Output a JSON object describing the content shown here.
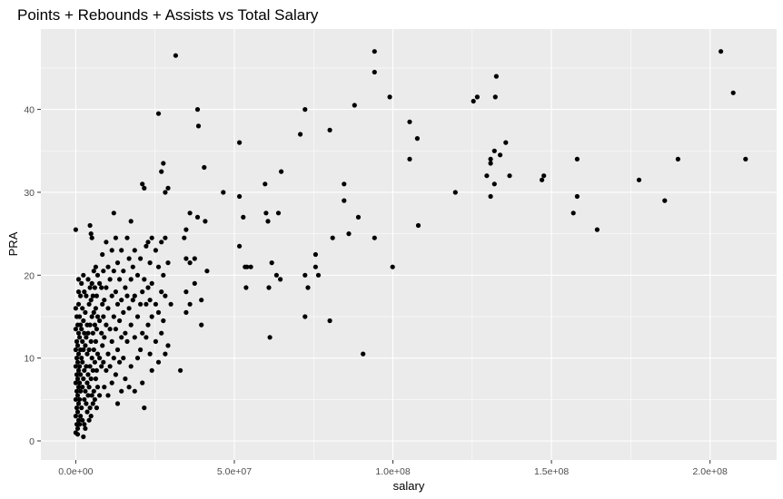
{
  "chart_data": {
    "type": "scatter",
    "title": "Points + Rebounds + Assists vs Total Salary",
    "xlabel": "salary",
    "ylabel": "PRA",
    "xlim": [
      -11000000,
      221000000
    ],
    "ylim": [
      -2.3,
      49.7
    ],
    "x_ticks": [
      0,
      50000000,
      100000000,
      150000000,
      200000000
    ],
    "x_tick_labels": [
      "0.0e+00",
      "5.0e+07",
      "1.0e+08",
      "1.5e+08",
      "2.0e+08"
    ],
    "y_ticks": [
      0,
      10,
      20,
      30,
      40
    ],
    "y_tick_labels": [
      "0",
      "10",
      "20",
      "30",
      "40"
    ],
    "grid": true,
    "colors": {
      "panel": "#ebebeb",
      "grid": "#ffffff",
      "point": "#000000"
    },
    "points": [
      [
        0,
        25.5
      ],
      [
        0,
        16
      ],
      [
        300000,
        15
      ],
      [
        0,
        13.5
      ],
      [
        300000,
        12
      ],
      [
        0,
        11
      ],
      [
        300000,
        10
      ],
      [
        0,
        9
      ],
      [
        300000,
        8
      ],
      [
        0,
        7
      ],
      [
        300000,
        6
      ],
      [
        0,
        5
      ],
      [
        300000,
        4
      ],
      [
        0,
        3
      ],
      [
        300000,
        2
      ],
      [
        0,
        1
      ],
      [
        600000,
        14
      ],
      [
        600000,
        11.5
      ],
      [
        600000,
        9.5
      ],
      [
        600000,
        7.5
      ],
      [
        600000,
        5.5
      ],
      [
        600000,
        3.5
      ],
      [
        600000,
        1.5
      ],
      [
        600000,
        0.8
      ],
      [
        900000,
        19.5
      ],
      [
        900000,
        18
      ],
      [
        900000,
        16.5
      ],
      [
        900000,
        13
      ],
      [
        900000,
        10.5
      ],
      [
        900000,
        8.5
      ],
      [
        900000,
        6.5
      ],
      [
        900000,
        4.5
      ],
      [
        900000,
        2.5
      ],
      [
        1200000,
        15
      ],
      [
        1200000,
        12.5
      ],
      [
        1200000,
        9
      ],
      [
        1200000,
        7
      ],
      [
        1200000,
        5
      ],
      [
        1200000,
        2
      ],
      [
        1500000,
        17.5
      ],
      [
        1500000,
        14
      ],
      [
        1500000,
        11
      ],
      [
        1500000,
        8
      ],
      [
        1500000,
        6
      ],
      [
        1500000,
        3
      ],
      [
        1800000,
        19
      ],
      [
        1800000,
        13.5
      ],
      [
        1800000,
        10
      ],
      [
        1800000,
        4
      ],
      [
        2100000,
        16
      ],
      [
        2100000,
        12
      ],
      [
        2100000,
        9.5
      ],
      [
        2100000,
        6.5
      ],
      [
        2100000,
        2.5
      ],
      [
        2400000,
        20
      ],
      [
        2400000,
        14.5
      ],
      [
        2400000,
        11
      ],
      [
        2400000,
        7.5
      ],
      [
        2400000,
        0.5
      ],
      [
        2700000,
        18
      ],
      [
        2700000,
        13
      ],
      [
        2700000,
        8.5
      ],
      [
        2700000,
        5
      ],
      [
        2700000,
        2
      ],
      [
        3000000,
        15.5
      ],
      [
        3000000,
        11.5
      ],
      [
        3000000,
        6
      ],
      [
        3000000,
        1.5
      ],
      [
        3300000,
        17.5
      ],
      [
        3300000,
        12.5
      ],
      [
        3300000,
        9
      ],
      [
        3300000,
        4.5
      ],
      [
        3600000,
        14
      ],
      [
        3600000,
        10.5
      ],
      [
        3600000,
        7
      ],
      [
        3600000,
        3.5
      ],
      [
        3900000,
        19.5
      ],
      [
        3900000,
        13
      ],
      [
        3900000,
        8
      ],
      [
        3900000,
        5.5
      ],
      [
        4200000,
        16.5
      ],
      [
        4200000,
        11
      ],
      [
        4200000,
        6.5
      ],
      [
        4200000,
        2.5
      ],
      [
        4500000,
        26
      ],
      [
        4500000,
        18.5
      ],
      [
        4500000,
        14
      ],
      [
        4500000,
        9
      ],
      [
        4500000,
        4
      ],
      [
        4800000,
        25
      ],
      [
        4800000,
        17
      ],
      [
        4800000,
        12
      ],
      [
        4800000,
        7.5
      ],
      [
        4800000,
        3
      ],
      [
        5100000,
        24.5
      ],
      [
        5100000,
        19
      ],
      [
        5100000,
        15
      ],
      [
        5100000,
        10
      ],
      [
        5100000,
        5.5
      ],
      [
        5400000,
        17.5
      ],
      [
        5400000,
        13
      ],
      [
        5400000,
        8.5
      ],
      [
        5400000,
        4.5
      ],
      [
        5700000,
        20.5
      ],
      [
        5700000,
        15.5
      ],
      [
        5700000,
        11
      ],
      [
        5700000,
        6
      ],
      [
        6000000,
        18.5
      ],
      [
        6000000,
        14
      ],
      [
        6000000,
        9.5
      ],
      [
        6000000,
        5
      ],
      [
        6300000,
        21
      ],
      [
        6300000,
        16
      ],
      [
        6300000,
        12
      ],
      [
        6300000,
        7.5
      ],
      [
        6600000,
        17.5
      ],
      [
        6600000,
        13.5
      ],
      [
        6600000,
        8.5
      ],
      [
        6600000,
        4
      ],
      [
        6900000,
        20
      ],
      [
        6900000,
        15
      ],
      [
        6900000,
        10.5
      ],
      [
        6900000,
        6.5
      ],
      [
        7500000,
        19
      ],
      [
        7500000,
        14.5
      ],
      [
        7500000,
        10
      ],
      [
        7500000,
        5.5
      ],
      [
        8100000,
        18.5
      ],
      [
        8100000,
        13
      ],
      [
        8100000,
        9
      ],
      [
        8400000,
        22.5
      ],
      [
        8400000,
        16.5
      ],
      [
        8400000,
        11.5
      ],
      [
        8700000,
        20.5
      ],
      [
        8700000,
        15
      ],
      [
        8700000,
        9.5
      ],
      [
        9000000,
        17
      ],
      [
        9000000,
        12.5
      ],
      [
        9000000,
        6.5
      ],
      [
        9600000,
        24
      ],
      [
        9600000,
        18.5
      ],
      [
        9600000,
        14
      ],
      [
        9600000,
        8.5
      ],
      [
        10200000,
        21
      ],
      [
        10200000,
        16
      ],
      [
        10200000,
        10.5
      ],
      [
        10200000,
        5.5
      ],
      [
        10800000,
        19.5
      ],
      [
        10800000,
        13.5
      ],
      [
        10800000,
        9
      ],
      [
        11400000,
        23
      ],
      [
        11400000,
        17.5
      ],
      [
        11400000,
        12
      ],
      [
        11400000,
        7
      ],
      [
        12000000,
        27.5
      ],
      [
        12000000,
        20.5
      ],
      [
        12000000,
        15
      ],
      [
        12000000,
        10
      ],
      [
        12600000,
        24.5
      ],
      [
        12600000,
        18
      ],
      [
        12600000,
        13.5
      ],
      [
        12600000,
        8
      ],
      [
        13200000,
        21.5
      ],
      [
        13200000,
        16.5
      ],
      [
        13200000,
        11
      ],
      [
        13200000,
        4.5
      ],
      [
        13800000,
        19.5
      ],
      [
        13800000,
        14.5
      ],
      [
        13800000,
        9.5
      ],
      [
        14400000,
        23
      ],
      [
        14400000,
        17
      ],
      [
        14400000,
        12.5
      ],
      [
        14400000,
        6
      ],
      [
        15000000,
        20.5
      ],
      [
        15000000,
        15.5
      ],
      [
        15000000,
        10
      ],
      [
        15600000,
        18.5
      ],
      [
        15600000,
        13
      ],
      [
        15600000,
        7.5
      ],
      [
        16200000,
        24.5
      ],
      [
        16200000,
        17.5
      ],
      [
        16200000,
        12
      ],
      [
        16800000,
        22
      ],
      [
        16800000,
        16
      ],
      [
        16800000,
        6.5
      ],
      [
        17400000,
        26.5
      ],
      [
        17400000,
        19.5
      ],
      [
        17400000,
        14
      ],
      [
        17400000,
        9
      ],
      [
        18000000,
        21
      ],
      [
        18000000,
        17
      ],
      [
        18600000,
        23
      ],
      [
        18600000,
        17.5
      ],
      [
        18600000,
        12.5
      ],
      [
        18600000,
        6
      ],
      [
        19500000,
        20
      ],
      [
        19500000,
        15
      ],
      [
        19500000,
        10
      ],
      [
        20400000,
        22
      ],
      [
        20400000,
        16.5
      ],
      [
        20400000,
        11
      ],
      [
        21000000,
        31
      ],
      [
        21000000,
        18
      ],
      [
        21000000,
        13
      ],
      [
        21000000,
        7
      ],
      [
        21600000,
        30.5
      ],
      [
        21600000,
        19.5
      ],
      [
        21600000,
        4
      ],
      [
        22200000,
        23.5
      ],
      [
        22200000,
        16.5
      ],
      [
        22200000,
        12.5
      ],
      [
        22800000,
        24
      ],
      [
        22800000,
        18.5
      ],
      [
        22800000,
        14
      ],
      [
        23400000,
        21.5
      ],
      [
        23400000,
        17
      ],
      [
        23400000,
        10.5
      ],
      [
        24000000,
        24.5
      ],
      [
        24000000,
        19
      ],
      [
        24000000,
        15
      ],
      [
        24000000,
        8.5
      ],
      [
        25200000,
        23
      ],
      [
        25200000,
        16.5
      ],
      [
        25200000,
        12
      ],
      [
        26100000,
        39.5
      ],
      [
        26100000,
        21
      ],
      [
        26100000,
        15.5
      ],
      [
        26100000,
        9.5
      ],
      [
        27000000,
        32.5
      ],
      [
        27000000,
        24
      ],
      [
        27000000,
        18
      ],
      [
        27000000,
        13
      ],
      [
        27600000,
        33.5
      ],
      [
        27600000,
        20
      ],
      [
        27600000,
        14.5
      ],
      [
        28200000,
        30
      ],
      [
        28200000,
        24.5
      ],
      [
        28200000,
        17.5
      ],
      [
        28200000,
        10.5
      ],
      [
        29100000,
        30.5
      ],
      [
        29100000,
        21.5
      ],
      [
        29100000,
        11.5
      ],
      [
        30000000,
        16.5
      ],
      [
        31500000,
        46.5
      ],
      [
        33000000,
        8.5
      ],
      [
        34200000,
        24.5
      ],
      [
        34800000,
        25.5
      ],
      [
        34800000,
        22
      ],
      [
        34800000,
        18
      ],
      [
        34800000,
        15.5
      ],
      [
        36000000,
        27.5
      ],
      [
        36000000,
        21.5
      ],
      [
        36000000,
        16.5
      ],
      [
        37500000,
        22
      ],
      [
        37500000,
        19
      ],
      [
        38400000,
        40
      ],
      [
        38400000,
        27
      ],
      [
        38700000,
        38
      ],
      [
        39600000,
        14
      ],
      [
        39600000,
        17
      ],
      [
        40500000,
        33
      ],
      [
        40800000,
        26.5
      ],
      [
        41400000,
        20.5
      ],
      [
        46500000,
        30
      ],
      [
        51600000,
        36
      ],
      [
        51600000,
        29.5
      ],
      [
        51600000,
        23.5
      ],
      [
        52800000,
        27
      ],
      [
        53400000,
        21
      ],
      [
        53700000,
        18.5
      ],
      [
        54000000,
        21
      ],
      [
        55200000,
        21
      ],
      [
        59700000,
        31
      ],
      [
        60000000,
        27.5
      ],
      [
        60600000,
        26.5
      ],
      [
        60900000,
        18.5
      ],
      [
        61200000,
        12.5
      ],
      [
        61800000,
        21.5
      ],
      [
        63300000,
        20
      ],
      [
        63900000,
        27.5
      ],
      [
        64500000,
        19.5
      ],
      [
        64800000,
        32.5
      ],
      [
        70800000,
        37
      ],
      [
        72300000,
        40
      ],
      [
        72300000,
        20
      ],
      [
        72300000,
        15
      ],
      [
        73200000,
        18.5
      ],
      [
        75600000,
        22.5
      ],
      [
        75600000,
        21
      ],
      [
        76500000,
        20
      ],
      [
        80100000,
        37.5
      ],
      [
        80100000,
        14.5
      ],
      [
        81000000,
        24.5
      ],
      [
        84600000,
        31
      ],
      [
        84600000,
        29
      ],
      [
        86100000,
        25
      ],
      [
        87900000,
        40.5
      ],
      [
        89100000,
        27
      ],
      [
        90600000,
        10.5
      ],
      [
        94200000,
        47
      ],
      [
        94200000,
        44.5
      ],
      [
        94200000,
        24.5
      ],
      [
        99000000,
        41.5
      ],
      [
        99900000,
        21
      ],
      [
        105300000,
        38.5
      ],
      [
        105300000,
        34
      ],
      [
        107700000,
        36.5
      ],
      [
        108000000,
        26
      ],
      [
        119700000,
        30
      ],
      [
        125400000,
        41
      ],
      [
        126600000,
        41.5
      ],
      [
        129600000,
        32
      ],
      [
        130800000,
        34
      ],
      [
        130800000,
        33.5
      ],
      [
        130800000,
        29.5
      ],
      [
        132000000,
        35
      ],
      [
        132000000,
        31
      ],
      [
        132300000,
        41.5
      ],
      [
        132600000,
        44
      ],
      [
        133800000,
        34.5
      ],
      [
        135600000,
        36
      ],
      [
        136800000,
        32
      ],
      [
        147000000,
        31.5
      ],
      [
        147600000,
        32
      ],
      [
        156900000,
        27.5
      ],
      [
        158100000,
        34
      ],
      [
        158100000,
        29.5
      ],
      [
        164400000,
        25.5
      ],
      [
        177600000,
        31.5
      ],
      [
        185700000,
        29
      ],
      [
        189900000,
        34
      ],
      [
        203400000,
        47
      ],
      [
        207300000,
        42
      ],
      [
        211200000,
        34
      ]
    ]
  }
}
